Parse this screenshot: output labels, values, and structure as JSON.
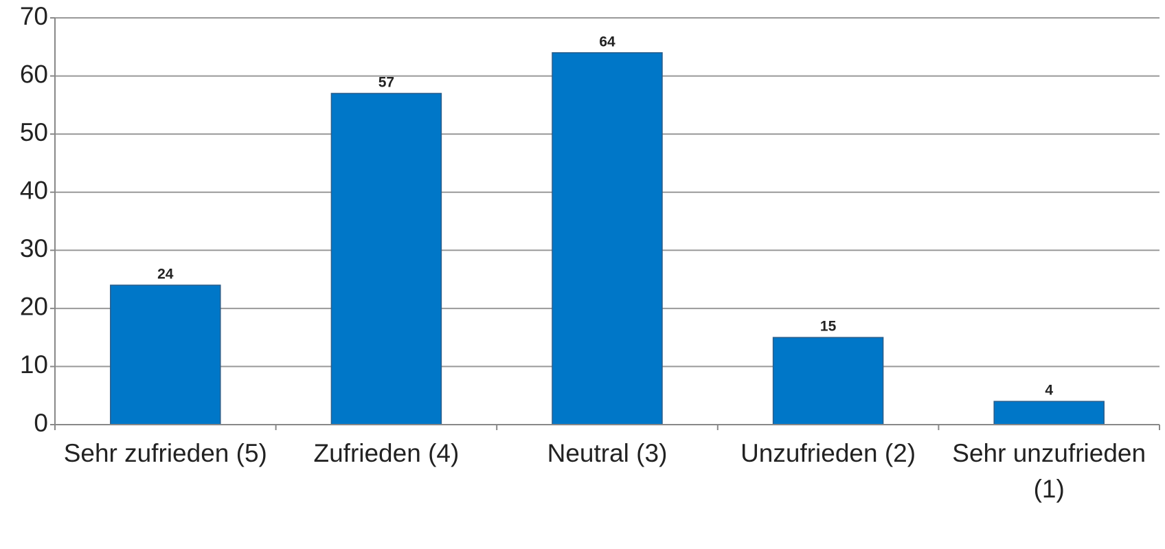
{
  "chart_data": {
    "type": "bar",
    "categories": [
      "Sehr zufrieden (5)",
      "Zufrieden (4)",
      "Neutral (3)",
      "Unzufrieden (2)",
      "Sehr unzufrieden (1)"
    ],
    "values": [
      24,
      57,
      64,
      15,
      4
    ],
    "color": "#0077c8",
    "ylim": [
      0,
      70
    ],
    "yticks": [
      0,
      10,
      20,
      30,
      40,
      50,
      60,
      70
    ],
    "grid": true
  }
}
